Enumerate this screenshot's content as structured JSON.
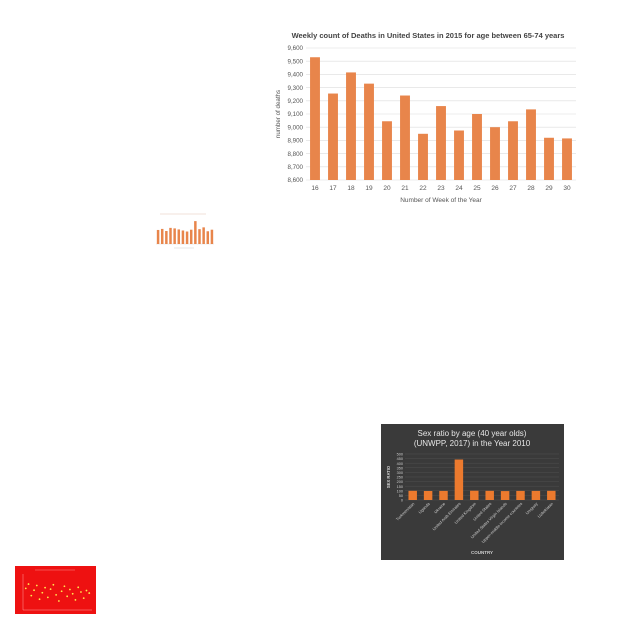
{
  "charts": [
    {
      "type": "bar",
      "title": "Weekly count of Deaths in United States in 2015 for age between 65-74 years",
      "xlabel": "Number of Week of the Year",
      "ylabel": "number of deaths",
      "categories": [
        "16",
        "17",
        "18",
        "19",
        "20",
        "21",
        "22",
        "23",
        "24",
        "25",
        "26",
        "27",
        "28",
        "29",
        "30"
      ],
      "values": [
        9530,
        9255,
        9415,
        9330,
        9045,
        9240,
        8950,
        9160,
        8975,
        9100,
        9000,
        9045,
        9135,
        8920,
        8915
      ],
      "ylim": [
        8600,
        9600
      ],
      "yticks": [
        "8,600",
        "8,700",
        "8,800",
        "8,900",
        "9,000",
        "9,100",
        "9,200",
        "9,300",
        "9,400",
        "9,500",
        "9,600"
      ],
      "grid": true,
      "bar_color": "#e8854b"
    },
    {
      "type": "bar",
      "values": [
        54,
        58,
        50,
        62,
        60,
        56,
        52,
        48,
        55,
        88,
        57,
        64,
        49,
        55
      ],
      "ylim": [
        0,
        100
      ],
      "bar_color": "#e8854b"
    },
    {
      "type": "bar",
      "title": "Sex ratio by age (40 year olds)",
      "subtitle": "(UNWPP, 2017) in the Year 2010",
      "xlabel": "COUNTRY",
      "ylabel": "SEX RATIO",
      "categories": [
        "Turkmenistan",
        "Uganda",
        "Ukraine",
        "United Arab Emirates",
        "United Kingdom",
        "United States",
        "United States Virgin Islands",
        "Upper-middle-income countries",
        "Uruguay",
        "Uzbekistan"
      ],
      "values": [
        100,
        98,
        99,
        440,
        101,
        100,
        97,
        99,
        99,
        100
      ],
      "ylim": [
        0,
        500
      ],
      "yticks": [
        "0",
        "50",
        "100",
        "150",
        "200",
        "250",
        "300",
        "350",
        "400",
        "450",
        "500"
      ],
      "bar_color": "#ec7a2e",
      "background": "#3a3a3a"
    },
    {
      "type": "scatter",
      "x": [
        1,
        2,
        3,
        4,
        5,
        6,
        7,
        8,
        9,
        10,
        11,
        12,
        13,
        14,
        15,
        16,
        17,
        18,
        19,
        20,
        21,
        22,
        23,
        24
      ],
      "values": [
        60,
        72,
        40,
        55,
        68,
        30,
        48,
        62,
        35,
        58,
        70,
        42,
        25,
        52,
        66,
        38,
        57,
        45,
        28,
        63,
        50,
        33,
        54,
        47
      ],
      "ylim": [
        0,
        100
      ],
      "point_color": "#ffe94d",
      "background": "#ee1111"
    }
  ]
}
